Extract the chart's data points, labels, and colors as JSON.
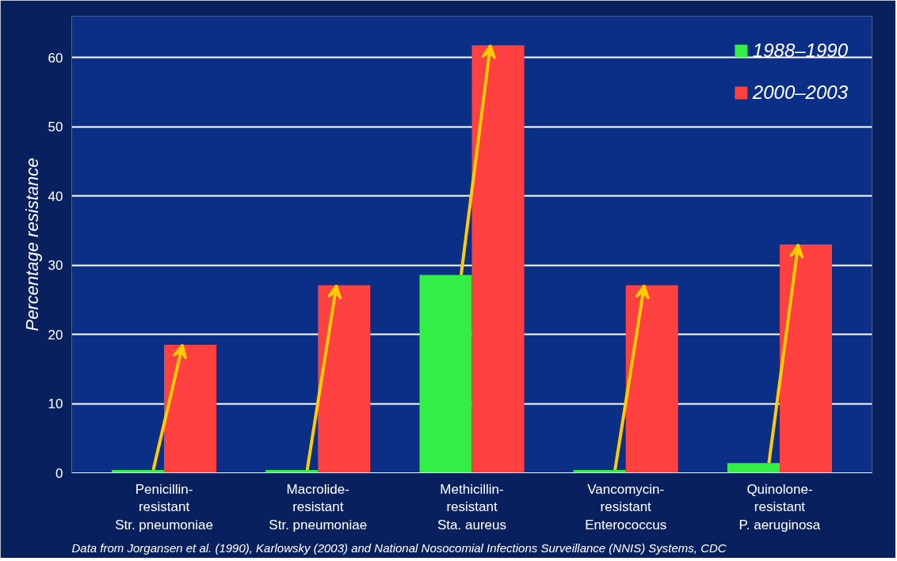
{
  "chart_data": {
    "type": "bar",
    "ylabel": "Percentage resistance",
    "categories": [
      "Penicillin-\nresistant\nStr. pneumoniae",
      "Macrolide-\nresistant\nStr. pneumoniae",
      "Methicillin-\nresistant\nSta. aureus",
      "Vancomycin-\nresistant\nEnterococcus",
      "Quinolone-\nresistant\nP. aeruginosa"
    ],
    "series": [
      {
        "name": "1988–1990",
        "color": "#33ee44",
        "values": [
          0.4,
          0.4,
          28.6,
          0.4,
          1.4
        ]
      },
      {
        "name": "2000–2003",
        "color": "#ff4040",
        "values": [
          18.5,
          27.1,
          61.8,
          27.1,
          33
        ]
      }
    ],
    "ylim": [
      0,
      66
    ],
    "yticks": [
      0,
      10,
      20,
      30,
      40,
      50,
      60
    ],
    "grid": "y",
    "legend": "top right",
    "annotations": [
      "Data from Jorgansen et al. (1990), Karlowsky (2003) and National Nosocomial Infections Surveillance (NNIS) Systems, CDC"
    ]
  }
}
